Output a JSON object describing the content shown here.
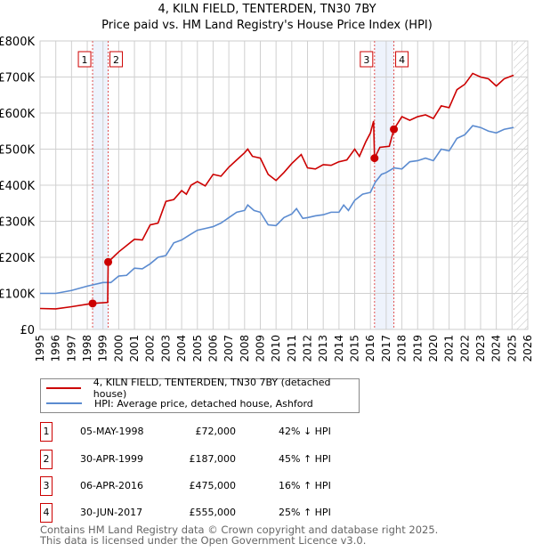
{
  "chart_data": {
    "type": "line",
    "title": "4, KILN FIELD, TENTERDEN, TN30 7BY",
    "subtitle": "Price paid vs. HM Land Registry's House Price Index (HPI)",
    "ylim": [
      0,
      800000
    ],
    "xlim": [
      1995,
      2026
    ],
    "y_ticks": [
      "£0",
      "£100K",
      "£200K",
      "£300K",
      "£400K",
      "£500K",
      "£600K",
      "£700K",
      "£800K"
    ],
    "x_ticks": [
      "1995",
      "1996",
      "1997",
      "1998",
      "1999",
      "2000",
      "2001",
      "2002",
      "2003",
      "2004",
      "2005",
      "2006",
      "2007",
      "2008",
      "2009",
      "2010",
      "2011",
      "2012",
      "2013",
      "2014",
      "2015",
      "2016",
      "2017",
      "2018",
      "2019",
      "2020",
      "2021",
      "2022",
      "2023",
      "2024",
      "2025",
      "2026"
    ],
    "grid": true,
    "series": [
      {
        "name": "4, KILN FIELD, TENTERDEN, TN30 7BY (detached house)",
        "color": "#cc0000",
        "x": [
          1995,
          1996,
          1997,
          1998,
          1998.34,
          1999.3,
          1999.33,
          2000,
          2001,
          2001.5,
          2002,
          2002.5,
          2003,
          2003.5,
          2004,
          2004.3,
          2004.6,
          2005,
          2005.5,
          2006,
          2006.5,
          2007,
          2007.5,
          2008,
          2008.2,
          2008.5,
          2009,
          2009.5,
          2010,
          2010.5,
          2011,
          2011.6,
          2012,
          2012.5,
          2013,
          2013.5,
          2014,
          2014.5,
          2015,
          2015.3,
          2015.7,
          2016,
          2016.2,
          2016.26,
          2016.6,
          2017.2,
          2017.49,
          2018,
          2018.5,
          2019,
          2019.5,
          2020,
          2020.5,
          2021,
          2021.5,
          2022,
          2022.5,
          2023,
          2023.5,
          2024,
          2024.5,
          2025.1
        ],
        "values": [
          58000,
          57000,
          63000,
          70000,
          72000,
          75000,
          187000,
          215000,
          250000,
          248000,
          290000,
          295000,
          355000,
          360000,
          385000,
          375000,
          400000,
          410000,
          398000,
          430000,
          425000,
          450000,
          470000,
          490000,
          500000,
          480000,
          475000,
          430000,
          413000,
          435000,
          460000,
          485000,
          448000,
          445000,
          457000,
          455000,
          465000,
          470000,
          500000,
          480000,
          520000,
          545000,
          578000,
          475000,
          505000,
          508000,
          555000,
          590000,
          580000,
          590000,
          595000,
          585000,
          620000,
          615000,
          665000,
          680000,
          710000,
          700000,
          695000,
          675000,
          695000,
          705000
        ]
      },
      {
        "name": "HPI: Average price, detached house, Ashford",
        "color": "#5b8bd0",
        "x": [
          1995,
          1996,
          1997,
          1998,
          1999,
          1999.5,
          2000,
          2000.5,
          2001,
          2001.5,
          2002,
          2002.5,
          2003,
          2003.5,
          2004,
          2004.5,
          2005,
          2005.5,
          2006,
          2006.5,
          2007,
          2007.5,
          2008,
          2008.2,
          2008.6,
          2009,
          2009.5,
          2010,
          2010.5,
          2011,
          2011.3,
          2011.7,
          2012,
          2012.5,
          2013,
          2013.5,
          2014,
          2014.3,
          2014.6,
          2015,
          2015.5,
          2016,
          2016.3,
          2016.7,
          2017,
          2017.5,
          2018,
          2018.5,
          2019,
          2019.5,
          2020,
          2020.5,
          2021,
          2021.5,
          2022,
          2022.5,
          2023,
          2023.5,
          2024,
          2024.5,
          2025.1
        ],
        "values": [
          100000,
          100000,
          108000,
          120000,
          130000,
          130000,
          148000,
          150000,
          170000,
          168000,
          182000,
          200000,
          205000,
          240000,
          248000,
          262000,
          275000,
          280000,
          285000,
          295000,
          310000,
          325000,
          330000,
          345000,
          330000,
          325000,
          290000,
          288000,
          310000,
          320000,
          335000,
          308000,
          310000,
          315000,
          318000,
          325000,
          325000,
          345000,
          330000,
          358000,
          375000,
          380000,
          408000,
          430000,
          435000,
          448000,
          445000,
          465000,
          468000,
          475000,
          468000,
          500000,
          495000,
          530000,
          540000,
          565000,
          560000,
          550000,
          545000,
          555000,
          560000
        ]
      }
    ],
    "sales": [
      {
        "label": "1",
        "x": 1998.34,
        "value": 72000
      },
      {
        "label": "2",
        "x": 1999.33,
        "value": 187000
      },
      {
        "label": "3",
        "x": 2016.26,
        "value": 475000
      },
      {
        "label": "4",
        "x": 2017.49,
        "value": 555000
      }
    ]
  },
  "legend": {
    "red": "4, KILN FIELD, TENTERDEN, TN30 7BY (detached house)",
    "blue": "HPI: Average price, detached house, Ashford"
  },
  "transactions": [
    {
      "num": "1",
      "date": "05-MAY-1998",
      "price": "£72,000",
      "hpi": "42% ↓ HPI"
    },
    {
      "num": "2",
      "date": "30-APR-1999",
      "price": "£187,000",
      "hpi": "45% ↑ HPI"
    },
    {
      "num": "3",
      "date": "06-APR-2016",
      "price": "£475,000",
      "hpi": "16% ↑ HPI"
    },
    {
      "num": "4",
      "date": "30-JUN-2017",
      "price": "£555,000",
      "hpi": "25% ↑ HPI"
    }
  ],
  "footer": {
    "line1": "Contains HM Land Registry data © Crown copyright and database right 2025.",
    "line2": "This data is licensed under the Open Government Licence v3.0."
  }
}
